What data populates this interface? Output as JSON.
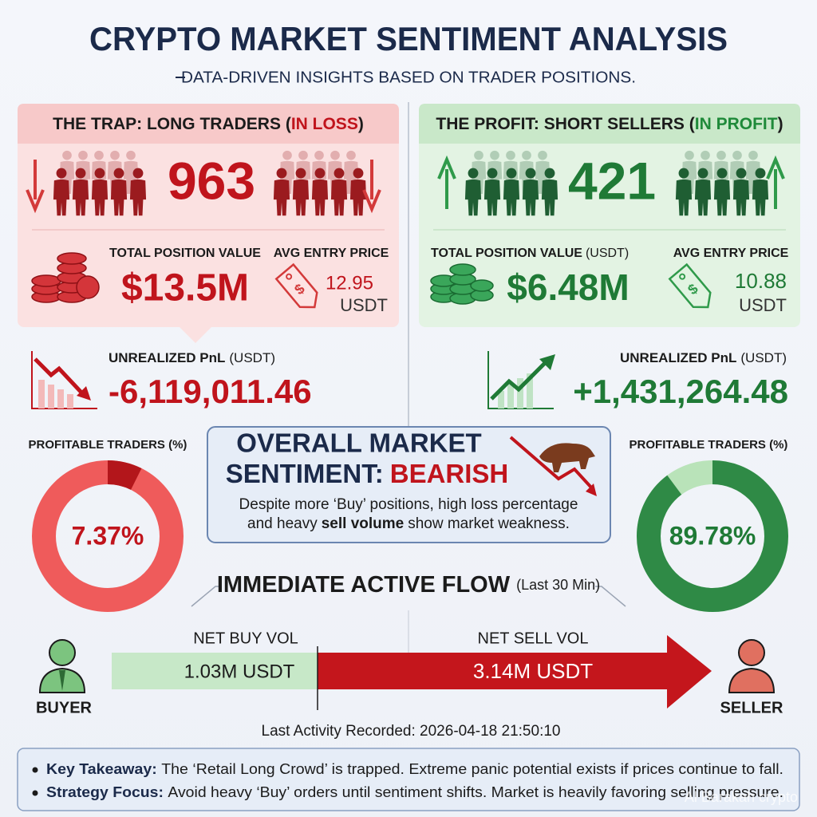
{
  "header": {
    "title": "CRYPTO MARKET SENTIMENT ANALYSIS",
    "subtitle": "DATA-DRIVEN INSIGHTS BASED ON TRADER POSITIONS."
  },
  "long_panel": {
    "title": "THE TRAP: LONG TRADERS (",
    "title_highlight": "IN LOSS",
    "title_end": ")",
    "traders": "963",
    "position_label": "TOTAL POSITION VALUE",
    "position_value": "$13.5M",
    "entry_label": "AVG ENTRY PRICE",
    "entry_price": "12.95",
    "entry_unit": "USDT",
    "pnl_label": "UNREALIZED PnL",
    "pnl_unit": "(USDT)",
    "pnl_value": "-6,119,011.46",
    "profitable_label": "PROFITABLE TRADERS (%)",
    "profitable": {
      "value": 7.37,
      "label": "7.37%"
    }
  },
  "short_panel": {
    "title": "THE PROFIT: SHORT SELLERS (",
    "title_highlight": "IN PROFIT",
    "title_end": ")",
    "traders": "421",
    "position_label": "TOTAL POSITION VALUE",
    "position_unit": "(USDT)",
    "position_value": "$6.48M",
    "entry_label": "AVG ENTRY PRICE",
    "entry_price": "10.88",
    "entry_unit": "USDT",
    "pnl_label": "UNREALIZED PnL",
    "pnl_unit": "(USDT)",
    "pnl_value": "+1,431,264.48",
    "profitable_label": "PROFITABLE TRADERS (%)",
    "profitable": {
      "value": 89.78,
      "label": "89.78%"
    }
  },
  "sentiment": {
    "line1": "OVERALL MARKET",
    "line2": "SENTIMENT:",
    "verdict": "BEARISH",
    "desc_line1": "Despite more ‘Buy’ positions, high loss percentage",
    "desc_line2_start": "and heavy",
    "desc_bold": "sell volume",
    "desc_line2_end": "show market weakness."
  },
  "flow": {
    "title": "IMMEDIATE ACTIVE FLOW",
    "period": "(Last 30 Min)",
    "buy_label": "NET BUY VOL",
    "buy_value": "1.03M USDT",
    "sell_label": "NET SELL VOL",
    "sell_value": "3.14M USDT",
    "buyer": "BUYER",
    "seller": "SELLER",
    "last_activity": "Last Activity Recorded: 2026-04-18 21:50:10"
  },
  "takeaways": [
    {
      "label": "Key Takeaway:",
      "text": "The ‘Retail Long Crowd’ is trapped. Extreme panic potential exists if prices continue to fall."
    },
    {
      "label": "Strategy Focus:",
      "text": "Avoid heavy ‘Buy’ orders until sentiment shifts. Market is heavily favoring selling pressure."
    }
  ],
  "watermark": "Al Barakah crypto"
}
